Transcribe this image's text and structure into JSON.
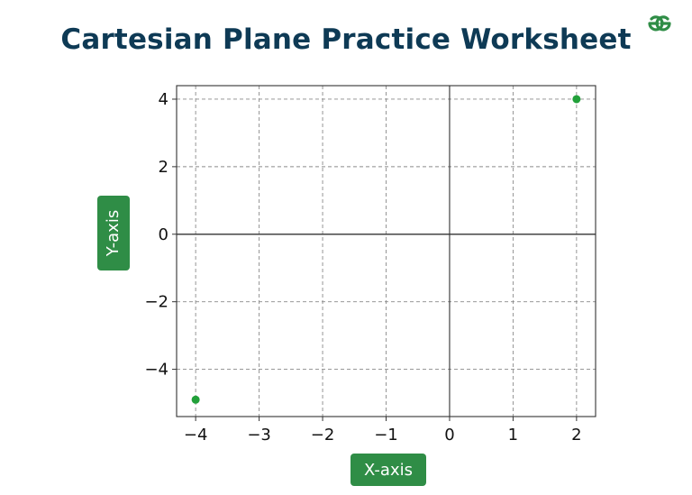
{
  "title": "Cartesian Plane Practice Worksheet",
  "logo_icon": "geeksforgeeks-logo-icon",
  "colors": {
    "title": "#0e3a55",
    "accent": "#2f8d46",
    "point": "#22a03a",
    "grid": "#8a8a8a",
    "axis": "#333333"
  },
  "chart_data": {
    "type": "scatter",
    "xlabel": "X-axis",
    "ylabel": "Y-axis",
    "xlim": [
      -4.3,
      2.3
    ],
    "ylim": [
      -5.4,
      4.4
    ],
    "xticks": [
      -4,
      -3,
      -2,
      -1,
      0,
      1,
      2
    ],
    "yticks": [
      -4,
      -2,
      0,
      2,
      4
    ],
    "grid": true,
    "grid_style": "dashed",
    "points": [
      {
        "x": 2,
        "y": 4
      },
      {
        "x": -4,
        "y": -4.9
      }
    ]
  }
}
